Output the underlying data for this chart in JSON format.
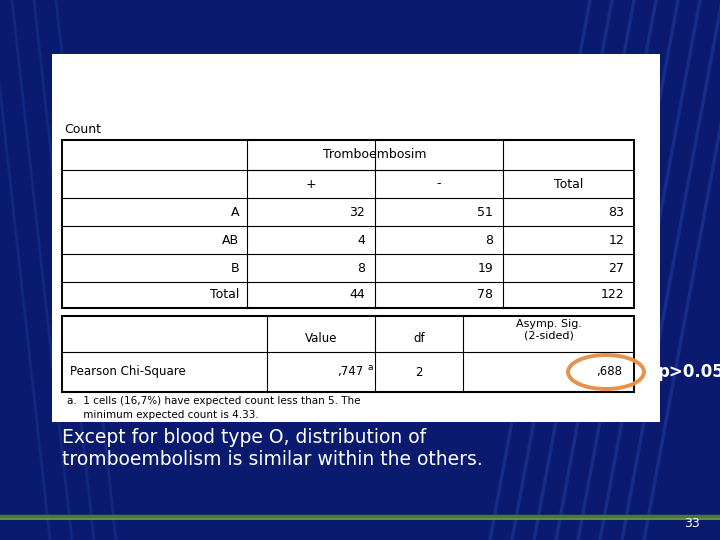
{
  "bg_color": "#0a1a6e",
  "white_box_color": "#ffffff",
  "table1_title": "Count",
  "table1_header_mid": "Tromboembosim",
  "table1_col_plus": "+",
  "table1_col_minus": "-",
  "table1_col_total": "Total",
  "table1_rows": [
    [
      "A",
      "32",
      "51",
      "83"
    ],
    [
      "AB",
      "4",
      "8",
      "12"
    ],
    [
      "B",
      "8",
      "19",
      "27"
    ],
    [
      "Total",
      "44",
      "78",
      "122"
    ]
  ],
  "table2_row": [
    "Pearson Chi-Square",
    ",747a",
    "2",
    ",688"
  ],
  "footnote_line1": "a.  1 cells (16,7%) have expected count less than 5. The",
  "footnote_line2": "     minimum expected count is 4.33.",
  "p_label": "p>0.05",
  "bottom_text_line1": "Except for blood type O, distribution of",
  "bottom_text_line2": "tromboembolism is similar within the others.",
  "page_number": "33",
  "circle_color": "#e8914a",
  "text_color": "#ffffff",
  "table_text_color": "#000000",
  "diag_color": "#1a3a9a",
  "green_line1": "#4a7a2a",
  "green_line2": "#6aaa3a"
}
